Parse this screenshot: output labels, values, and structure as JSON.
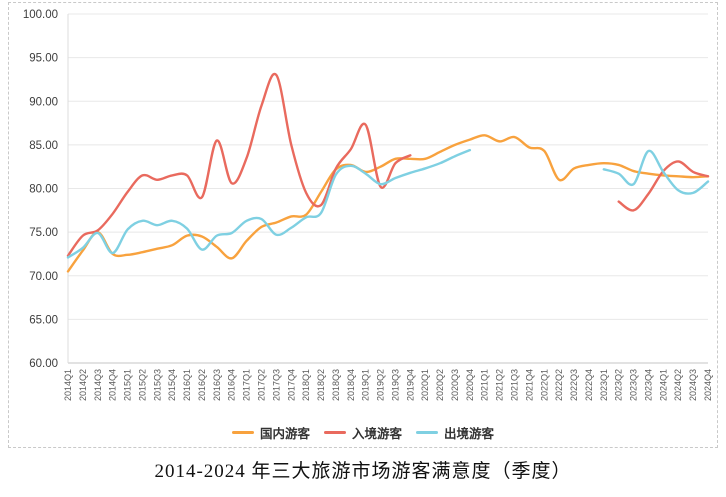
{
  "chart_data": {
    "type": "line",
    "title": "2014-2024 年三大旅游市场游客满意度（季度）",
    "xlabel": "",
    "ylabel": "",
    "ylim": [
      60,
      100
    ],
    "ytick_step": 5,
    "ytick_format": "0.00",
    "grid": "horizontal",
    "legend_position": "bottom",
    "line_smoothing": true,
    "categories": [
      "2014Q1",
      "2014Q2",
      "2014Q3",
      "2014Q4",
      "2015Q1",
      "2015Q2",
      "2015Q3",
      "2015Q4",
      "2016Q1",
      "2016Q2",
      "2016Q3",
      "2016Q4",
      "2017Q1",
      "2017Q2",
      "2017Q3",
      "2017Q4",
      "2018Q1",
      "2018Q2",
      "2018Q3",
      "2018Q4",
      "2019Q1",
      "2019Q2",
      "2019Q3",
      "2019Q4",
      "2020Q1",
      "2020Q2",
      "2020Q3",
      "2020Q4",
      "2021Q1",
      "2021Q2",
      "2021Q3",
      "2021Q4",
      "2022Q1",
      "2022Q2",
      "2022Q3",
      "2022Q4",
      "2023Q1",
      "2023Q2",
      "2023Q3",
      "2023Q4",
      "2024Q1",
      "2024Q2",
      "2024Q3",
      "2024Q4"
    ],
    "series": [
      {
        "name": "国内游客",
        "color": "#F8A23E",
        "values": [
          70.5,
          72.9,
          75.0,
          72.5,
          72.4,
          72.7,
          73.1,
          73.5,
          74.6,
          74.5,
          73.3,
          72.0,
          74.0,
          75.6,
          76.1,
          76.8,
          77.0,
          79.6,
          82.2,
          82.7,
          81.9,
          82.5,
          83.4,
          83.4,
          83.4,
          84.2,
          85.0,
          85.6,
          86.1,
          85.4,
          85.9,
          84.7,
          84.3,
          81.0,
          82.3,
          82.7,
          82.9,
          82.7,
          82.0,
          81.7,
          81.5,
          81.4,
          81.3,
          81.4
        ]
      },
      {
        "name": "入境游客",
        "color": "#E96A5E",
        "values": [
          72.3,
          74.6,
          75.2,
          77.1,
          79.6,
          81.5,
          81.0,
          81.5,
          81.5,
          79.0,
          85.5,
          80.6,
          83.5,
          89.5,
          93.0,
          85.0,
          79.5,
          78.1,
          82.3,
          84.5,
          87.3,
          80.2,
          82.9,
          83.8,
          null,
          null,
          null,
          null,
          null,
          null,
          null,
          null,
          null,
          null,
          null,
          null,
          null,
          78.5,
          77.5,
          79.4,
          82.0,
          83.1,
          81.9,
          81.4
        ]
      },
      {
        "name": "出境游客",
        "color": "#7FD0E2",
        "values": [
          72.1,
          73.2,
          74.9,
          72.6,
          75.3,
          76.3,
          75.8,
          76.3,
          75.4,
          73.0,
          74.6,
          74.9,
          76.3,
          76.5,
          74.7,
          75.5,
          76.7,
          77.2,
          81.6,
          82.6,
          81.7,
          80.5,
          81.2,
          81.8,
          82.3,
          82.9,
          83.7,
          84.4,
          null,
          null,
          null,
          null,
          null,
          null,
          null,
          null,
          82.2,
          81.7,
          80.5,
          84.3,
          81.9,
          79.8,
          79.5,
          80.8
        ]
      }
    ]
  }
}
